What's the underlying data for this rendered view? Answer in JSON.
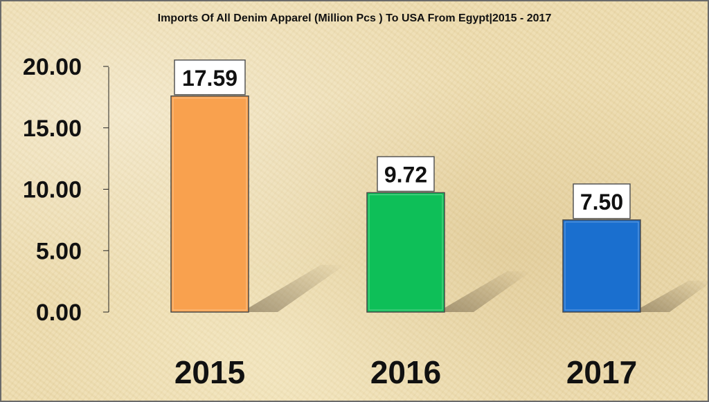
{
  "chart_data": {
    "type": "bar",
    "title": "Imports Of All Denim Apparel (Million Pcs ) To USA From Egypt|2015 - 2017",
    "categories": [
      "2015",
      "2016",
      "2017"
    ],
    "values": [
      17.59,
      9.72,
      7.5
    ],
    "data_labels": [
      "17.59",
      "9.72",
      "7.50"
    ],
    "bar_colors": [
      "#f9a14e",
      "#0ebf58",
      "#1a6fcf"
    ],
    "ylim": [
      0,
      20
    ],
    "yticks": [
      0,
      5,
      10,
      15,
      20
    ],
    "ytick_labels": [
      "0.00",
      "5.00",
      "10.00",
      "15.00",
      "20.00"
    ],
    "grid": false,
    "legend": "none"
  }
}
